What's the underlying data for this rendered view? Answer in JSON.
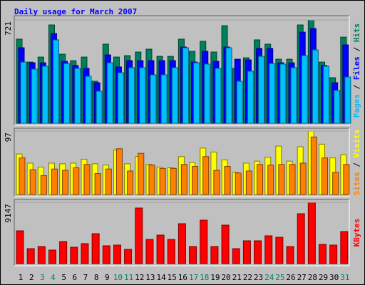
{
  "title": "Daily usage for March 2007",
  "legend_separator": "/",
  "chart_data": [
    {
      "type": "bar",
      "ylim": [
        0,
        721
      ],
      "yticks": [
        721
      ],
      "series": [
        {
          "name": "Hits",
          "color": "#00805c",
          "values": [
            587,
            427,
            462,
            686,
            482,
            437,
            462,
            293,
            552,
            462,
            472,
            497,
            517,
            467,
            467,
            587,
            502,
            572,
            497,
            681,
            383,
            457,
            582,
            552,
            447,
            447,
            686,
            721,
            427,
            318,
            601
          ]
        },
        {
          "name": "Files",
          "color": "#0000ff",
          "values": [
            527,
            422,
            422,
            626,
            432,
            403,
            383,
            283,
            477,
            393,
            437,
            437,
            437,
            437,
            437,
            532,
            427,
            502,
            432,
            532,
            447,
            442,
            522,
            522,
            422,
            422,
            636,
            661,
            403,
            283,
            547
          ]
        },
        {
          "name": "Pages",
          "color": "#00c0ff",
          "values": [
            427,
            378,
            398,
            582,
            417,
            383,
            328,
            224,
            422,
            353,
            388,
            388,
            338,
            338,
            388,
            527,
            422,
            413,
            383,
            527,
            293,
            363,
            467,
            417,
            413,
            388,
            472,
            512,
            398,
            229,
            323
          ]
        }
      ]
    },
    {
      "type": "bar",
      "ylim": [
        0,
        97
      ],
      "yticks": [
        97
      ],
      "series": [
        {
          "name": "Visits",
          "color": "#ffff00",
          "values": [
            62,
            48,
            42,
            48,
            47,
            48,
            54,
            47,
            45,
            68,
            47,
            58,
            46,
            42,
            41,
            58,
            49,
            71,
            65,
            53,
            34,
            48,
            51,
            57,
            74,
            51,
            73,
            97,
            77,
            56,
            61
          ]
        },
        {
          "name": "Sites",
          "color": "#ff8000",
          "values": [
            56,
            38,
            29,
            39,
            37,
            41,
            46,
            32,
            39,
            70,
            36,
            63,
            45,
            40,
            40,
            46,
            43,
            58,
            37,
            43,
            33,
            36,
            46,
            45,
            46,
            46,
            48,
            88,
            56,
            34,
            46
          ]
        }
      ]
    },
    {
      "type": "bar",
      "ylim": [
        0,
        9147
      ],
      "yticks": [
        9147
      ],
      "categories": [
        "1",
        "2",
        "3",
        "4",
        "5",
        "6",
        "7",
        "8",
        "9",
        "10",
        "11",
        "12",
        "13",
        "14",
        "15",
        "16",
        "17",
        "18",
        "19",
        "20",
        "21",
        "22",
        "23",
        "24",
        "25",
        "26",
        "27",
        "28",
        "29",
        "30",
        "31"
      ],
      "category_colors": [
        "#000000",
        "#000000",
        "#00805c",
        "#00805c",
        "#000000",
        "#000000",
        "#000000",
        "#000000",
        "#000000",
        "#00805c",
        "#00805c",
        "#000000",
        "#000000",
        "#000000",
        "#000000",
        "#000000",
        "#00805c",
        "#00805c",
        "#000000",
        "#000000",
        "#000000",
        "#000000",
        "#000000",
        "#00805c",
        "#00805c",
        "#000000",
        "#000000",
        "#000000",
        "#000000",
        "#000000",
        "#00805c"
      ],
      "series": [
        {
          "name": "KBytes",
          "color": "#ff0000",
          "values": [
            4894,
            2234,
            2553,
            2021,
            3298,
            2447,
            2979,
            4469,
            2660,
            2766,
            2128,
            8298,
            3617,
            4256,
            3617,
            5958,
            2553,
            6490,
            2553,
            5745,
            2234,
            3404,
            3404,
            4149,
            3936,
            2553,
            7447,
            9147,
            2872,
            2766,
            4788
          ]
        }
      ]
    }
  ]
}
